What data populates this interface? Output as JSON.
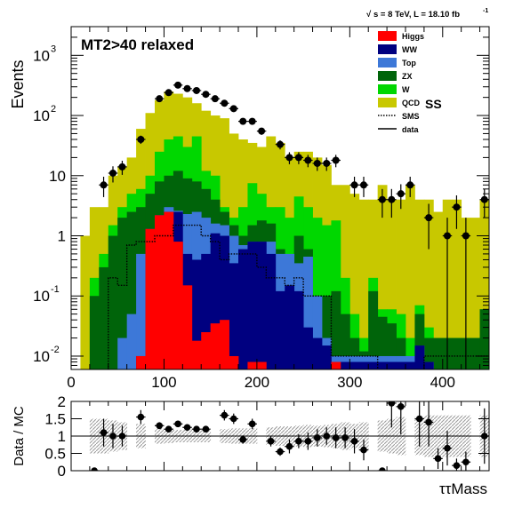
{
  "chart_data": [
    {
      "type": "stacked-histogram",
      "header": {
        "energy": "s = 8 TeV, L = 18.10 fb",
        "superscript": "-1"
      },
      "title": "MT2>40 relaxed",
      "region": "SS",
      "ylabel": "Events",
      "xlabel": "",
      "ylog": true,
      "ylim": [
        0.006,
        3000
      ],
      "xlim": [
        0,
        450
      ],
      "x_ticks": [
        "0",
        "100",
        "200",
        "300",
        "400"
      ],
      "y_ticks": [
        {
          "base": "10",
          "exp": "-2",
          "value": 0.01
        },
        {
          "base": "10",
          "exp": "-1",
          "value": 0.1
        },
        {
          "base": "1",
          "exp": "",
          "value": 1
        },
        {
          "base": "10",
          "exp": "",
          "value": 10
        },
        {
          "base": "10",
          "exp": "2",
          "value": 100
        },
        {
          "base": "10",
          "exp": "3",
          "value": 1000
        }
      ],
      "bin_width": 10,
      "bin_low_edges": [
        10,
        20,
        30,
        40,
        50,
        60,
        70,
        80,
        90,
        100,
        110,
        120,
        130,
        140,
        150,
        160,
        170,
        180,
        190,
        200,
        210,
        220,
        230,
        240,
        250,
        260,
        270,
        280,
        290,
        300,
        310,
        320,
        330,
        340,
        350,
        360,
        370,
        380,
        390,
        400,
        410,
        420,
        430,
        440
      ],
      "legend": [
        {
          "label": "Higgs",
          "color": "#ff0000",
          "style": "fill"
        },
        {
          "label": "WW",
          "color": "#000080",
          "style": "fill"
        },
        {
          "label": "Top",
          "color": "#3d78d8",
          "style": "fill"
        },
        {
          "label": "ZX",
          "color": "#00640a",
          "style": "fill"
        },
        {
          "label": "W",
          "color": "#00d700",
          "style": "fill"
        },
        {
          "label": "QCD",
          "color": "#c8c800",
          "style": "fill"
        },
        {
          "label": "SMS",
          "color": "#000000",
          "style": "dotted"
        },
        {
          "label": "data",
          "color": "#000000",
          "style": "line"
        }
      ],
      "stack_cumulative": [
        {
          "name": "Higgs",
          "values": [
            0,
            0,
            0,
            0,
            0,
            0,
            0.01,
            1.3,
            2.2,
            2.5,
            0.8,
            0.15,
            0.018,
            0.025,
            0.035,
            0.04,
            0.01,
            0.006,
            0.008,
            0.008,
            0,
            0,
            0,
            0,
            0,
            0,
            0,
            0.008,
            0,
            0,
            0,
            0,
            0,
            0,
            0,
            0,
            0,
            0,
            0,
            0,
            0,
            0,
            0,
            0
          ]
        },
        {
          "name": "WW",
          "values": [
            0,
            0,
            0,
            0,
            0,
            0,
            0.01,
            1.3,
            2.2,
            2.5,
            2.5,
            0.5,
            0.4,
            0.5,
            1.1,
            1.0,
            0.35,
            0.6,
            0.8,
            0.8,
            0.5,
            0.12,
            0.15,
            0.12,
            0.03,
            0.02,
            0.015,
            0.008,
            0.008,
            0.008,
            0.008,
            0.008,
            0.008,
            0.008,
            0.008,
            0.008,
            0.015,
            0.008,
            0,
            0,
            0,
            0,
            0,
            0
          ]
        },
        {
          "name": "Top",
          "values": [
            0,
            0,
            0,
            0,
            0.02,
            0.05,
            0.5,
            1.3,
            2.2,
            3.0,
            2.6,
            2.3,
            2.5,
            2.0,
            1.6,
            1.5,
            1.0,
            0.7,
            0.8,
            0.8,
            0.8,
            0.5,
            0.5,
            0.35,
            0.45,
            0.1,
            0.02,
            0.01,
            0.01,
            0.01,
            0.01,
            0.01,
            0.01,
            0.01,
            0.01,
            0.01,
            0.015,
            0.008,
            0,
            0,
            0,
            0,
            0,
            0
          ]
        },
        {
          "name": "ZX",
          "values": [
            0,
            0.1,
            0.3,
            1.0,
            2.0,
            2.5,
            3.0,
            5.0,
            8.0,
            10,
            12,
            9,
            8,
            6,
            4,
            2.5,
            1.5,
            1.0,
            1.5,
            1.8,
            1.6,
            0.6,
            0.3,
            1.0,
            0.6,
            0.1,
            0.1,
            0.12,
            0.05,
            0.02,
            0.012,
            0.12,
            0.045,
            0.035,
            0.02,
            0.01,
            0.05,
            0.02,
            0.02,
            0.02,
            0.02,
            0.02,
            0.02,
            0.06
          ]
        },
        {
          "name": "W",
          "values": [
            0,
            0.2,
            0.5,
            1.5,
            3.0,
            5.0,
            6.0,
            10,
            25,
            40,
            45,
            30,
            45,
            12,
            10,
            3.0,
            2.0,
            3.0,
            7.5,
            5.0,
            3.0,
            3.0,
            2.0,
            4.5,
            3.0,
            2.0,
            1.5,
            1.8,
            0.2,
            0.05,
            0.02,
            0.2,
            0.06,
            0.06,
            0.05,
            0.02,
            0.07,
            0.03,
            0.02,
            0.02,
            0.02,
            0.02,
            0.02,
            0.06
          ]
        },
        {
          "name": "QCD",
          "values": [
            1.0,
            3.0,
            3.0,
            10,
            14,
            20,
            60,
            110,
            180,
            250,
            230,
            200,
            160,
            120,
            100,
            90,
            50,
            40,
            35,
            30,
            45,
            35,
            20,
            25,
            25,
            20,
            15,
            7,
            7,
            5,
            4,
            4,
            7,
            4,
            4,
            7,
            4,
            4,
            2.5,
            4.0,
            4.0,
            2.0,
            2.0,
            4.0
          ]
        }
      ],
      "sms": [
        0,
        0,
        0,
        0.2,
        0.15,
        0.7,
        0.8,
        0.8,
        1.0,
        1.0,
        1.5,
        1.5,
        1.5,
        1.0,
        0.8,
        0.4,
        0.5,
        0.5,
        0.5,
        0.3,
        0.2,
        0.2,
        0.15,
        0.2,
        0.1,
        0.1,
        0.1,
        0.01,
        0.01,
        0.01,
        0.01,
        0.01,
        0.005,
        0.005,
        0.005,
        0.002,
        0.002,
        0.01,
        0.01,
        0.01,
        0.01,
        0.01,
        0.01,
        0.01
      ],
      "data_points": [
        {
          "x": 35,
          "y": 7,
          "err": 2.6
        },
        {
          "x": 45,
          "y": 11,
          "err": 3.3
        },
        {
          "x": 55,
          "y": 14,
          "err": 3.7
        },
        {
          "x": 75,
          "y": 40,
          "err": 6.3
        },
        {
          "x": 95,
          "y": 190,
          "err": 14
        },
        {
          "x": 105,
          "y": 240,
          "err": 15.5
        },
        {
          "x": 115,
          "y": 320,
          "err": 18
        },
        {
          "x": 125,
          "y": 280,
          "err": 17
        },
        {
          "x": 135,
          "y": 260,
          "err": 16
        },
        {
          "x": 145,
          "y": 225,
          "err": 15
        },
        {
          "x": 155,
          "y": 190,
          "err": 14
        },
        {
          "x": 165,
          "y": 160,
          "err": 13
        },
        {
          "x": 175,
          "y": 130,
          "err": 11.5
        },
        {
          "x": 185,
          "y": 80,
          "err": 9
        },
        {
          "x": 195,
          "y": 80,
          "err": 9
        },
        {
          "x": 205,
          "y": 55,
          "err": 7.4
        },
        {
          "x": 225,
          "y": 33,
          "err": 5.7
        },
        {
          "x": 235,
          "y": 20,
          "err": 4.5
        },
        {
          "x": 245,
          "y": 20,
          "err": 4.5
        },
        {
          "x": 255,
          "y": 18,
          "err": 4.2
        },
        {
          "x": 265,
          "y": 16,
          "err": 4
        },
        {
          "x": 275,
          "y": 16,
          "err": 4
        },
        {
          "x": 285,
          "y": 18,
          "err": 4.2
        },
        {
          "x": 305,
          "y": 7,
          "err": 2.6
        },
        {
          "x": 315,
          "y": 7,
          "err": 2.6
        },
        {
          "x": 335,
          "y": 4,
          "err": 2
        },
        {
          "x": 345,
          "y": 4,
          "err": 2
        },
        {
          "x": 355,
          "y": 5,
          "err": 2.2
        },
        {
          "x": 365,
          "y": 7,
          "err": 2.6
        },
        {
          "x": 385,
          "y": 2,
          "err": 1.4
        },
        {
          "x": 405,
          "y": 1,
          "err": 1
        },
        {
          "x": 415,
          "y": 3,
          "err": 1.7
        },
        {
          "x": 425,
          "y": 1,
          "err": 1
        },
        {
          "x": 445,
          "y": 4,
          "err": 2
        }
      ]
    },
    {
      "type": "ratio",
      "ylabel": "Data / MC",
      "xlabel": "ττMass",
      "ylim": [
        0,
        2
      ],
      "xlim": [
        0,
        450
      ],
      "y_ticks": [
        "0",
        "0.5",
        "1",
        "1.5",
        "2"
      ],
      "x": [
        25,
        35,
        45,
        55,
        75,
        95,
        105,
        115,
        125,
        135,
        145,
        165,
        175,
        185,
        195,
        215,
        225,
        235,
        245,
        255,
        265,
        275,
        285,
        295,
        305,
        315,
        335,
        345,
        355,
        375,
        385,
        395,
        405,
        415,
        425,
        445
      ],
      "values": [
        0.0,
        1.1,
        1.0,
        1.0,
        1.55,
        1.3,
        1.2,
        1.35,
        1.25,
        1.2,
        1.2,
        1.6,
        1.5,
        0.9,
        1.35,
        0.85,
        0.55,
        0.7,
        0.85,
        0.85,
        0.95,
        1.0,
        0.95,
        0.95,
        0.85,
        0.6,
        0.0,
        1.95,
        1.85,
        1.5,
        1.4,
        0.35,
        0.65,
        0.15,
        0.25,
        1.0
      ],
      "errors": [
        0,
        0.4,
        0.35,
        0.3,
        0.2,
        0.1,
        0.08,
        0.08,
        0.08,
        0.08,
        0.09,
        0.15,
        0.15,
        0.12,
        0.15,
        0.15,
        0.12,
        0.2,
        0.2,
        0.25,
        0.25,
        0.25,
        0.3,
        0.3,
        0.35,
        0.3,
        0,
        0.7,
        0.8,
        0.8,
        0.7,
        0.3,
        0.5,
        0.2,
        0.3,
        0.8
      ],
      "band_halfwidth": [
        0.5,
        0.5,
        0.45,
        0.4,
        0.35,
        0.22,
        0.2,
        0.18,
        0.18,
        0.18,
        0.18,
        0.2,
        0.22,
        0.22,
        0.22,
        0.25,
        0.28,
        0.28,
        0.3,
        0.32,
        0.3,
        0.32,
        0.35,
        0.4,
        0.35,
        0.4,
        0.45,
        0.5,
        0.55,
        0.55,
        0.6,
        0.6,
        0.6,
        0.6,
        0.6,
        0.6
      ]
    }
  ]
}
